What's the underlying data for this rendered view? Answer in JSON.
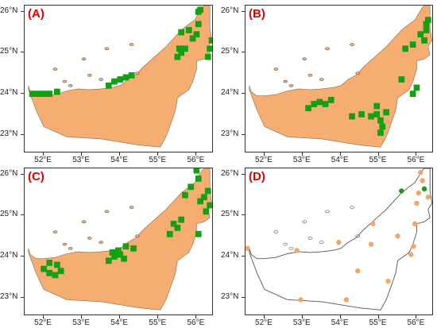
{
  "colors": {
    "land": "#f5ad72",
    "suitable": "#13a013",
    "point_orange": "#f2a766",
    "point_green": "#1a9c1a",
    "coastline": "#555555",
    "panel_label": "#e00000"
  },
  "axes": {
    "x_ticks": [
      "52°E",
      "53°E",
      "54°E",
      "55°E",
      "56°E"
    ],
    "y_ticks": [
      "26°N",
      "25°N",
      "24°N",
      "23°N"
    ],
    "lon_values": [
      52,
      53,
      54,
      55,
      56
    ],
    "lat_values": [
      26,
      25,
      24,
      23
    ],
    "lon_range": [
      51.5,
      56.45
    ],
    "lat_range": [
      22.55,
      26.15
    ]
  },
  "panels": [
    {
      "label": "(A)",
      "type": "prediction"
    },
    {
      "label": "(B)",
      "type": "prediction"
    },
    {
      "label": "(C)",
      "type": "prediction"
    },
    {
      "label": "(D)",
      "type": "occurrence"
    }
  ],
  "map_data": {
    "outline_lonlat": [
      [
        51.6,
        24.2
      ],
      [
        51.65,
        24.05
      ],
      [
        51.8,
        23.95
      ],
      [
        52.0,
        23.95
      ],
      [
        52.3,
        23.98
      ],
      [
        52.6,
        24.07
      ],
      [
        52.9,
        24.12
      ],
      [
        53.2,
        24.1
      ],
      [
        53.5,
        24.12
      ],
      [
        53.8,
        24.15
      ],
      [
        54.0,
        24.2
      ],
      [
        54.2,
        24.35
      ],
      [
        54.4,
        24.45
      ],
      [
        54.6,
        24.65
      ],
      [
        54.9,
        24.9
      ],
      [
        55.2,
        25.15
      ],
      [
        55.4,
        25.35
      ],
      [
        55.6,
        25.55
      ],
      [
        55.8,
        25.7
      ],
      [
        55.95,
        25.8
      ],
      [
        56.08,
        26.0
      ],
      [
        56.15,
        26.1
      ],
      [
        56.2,
        26.15
      ],
      [
        56.35,
        26.15
      ],
      [
        56.35,
        25.85
      ],
      [
        56.35,
        25.6
      ],
      [
        56.4,
        25.3
      ],
      [
        56.3,
        25.15
      ],
      [
        56.35,
        24.95
      ],
      [
        56.2,
        24.85
      ],
      [
        56.0,
        24.8
      ],
      [
        56.0,
        24.6
      ],
      [
        55.9,
        24.3
      ],
      [
        55.8,
        24.1
      ],
      [
        55.5,
        23.9
      ],
      [
        55.45,
        23.6
      ],
      [
        55.3,
        23.2
      ],
      [
        55.2,
        22.95
      ],
      [
        55.05,
        22.7
      ],
      [
        54.5,
        22.75
      ],
      [
        53.5,
        22.9
      ],
      [
        52.6,
        22.95
      ],
      [
        52.0,
        23.2
      ],
      [
        51.8,
        23.6
      ],
      [
        51.6,
        24.1
      ]
    ],
    "islands_lonlat": [
      [
        52.3,
        24.6
      ],
      [
        52.55,
        24.3
      ],
      [
        53.2,
        24.45
      ],
      [
        53.5,
        24.35
      ],
      [
        53.65,
        25.1
      ],
      [
        53.05,
        24.85
      ],
      [
        54.3,
        25.2
      ],
      [
        54.45,
        24.5
      ],
      [
        52.7,
        24.2
      ]
    ],
    "occurrences": [
      {
        "lon": 51.55,
        "lat": 24.2,
        "kind": "orange"
      },
      {
        "lon": 52.85,
        "lat": 24.15,
        "kind": "orange"
      },
      {
        "lon": 52.95,
        "lat": 22.95,
        "kind": "orange"
      },
      {
        "lon": 53.95,
        "lat": 24.35,
        "kind": "orange"
      },
      {
        "lon": 54.15,
        "lat": 22.95,
        "kind": "orange"
      },
      {
        "lon": 54.45,
        "lat": 23.65,
        "kind": "orange"
      },
      {
        "lon": 54.8,
        "lat": 24.3,
        "kind": "orange"
      },
      {
        "lon": 54.85,
        "lat": 24.8,
        "kind": "orange"
      },
      {
        "lon": 55.25,
        "lat": 23.4,
        "kind": "orange"
      },
      {
        "lon": 55.5,
        "lat": 24.5,
        "kind": "orange"
      },
      {
        "lon": 55.85,
        "lat": 24.05,
        "kind": "orange"
      },
      {
        "lon": 55.92,
        "lat": 24.25,
        "kind": "orange"
      },
      {
        "lon": 55.95,
        "lat": 24.8,
        "kind": "orange"
      },
      {
        "lon": 56.0,
        "lat": 25.3,
        "kind": "orange"
      },
      {
        "lon": 56.05,
        "lat": 25.55,
        "kind": "orange"
      },
      {
        "lon": 56.15,
        "lat": 25.85,
        "kind": "orange"
      },
      {
        "lon": 56.3,
        "lat": 25.45,
        "kind": "orange"
      },
      {
        "lon": 56.1,
        "lat": 26.05,
        "kind": "orange"
      },
      {
        "lon": 55.6,
        "lat": 25.6,
        "kind": "green"
      },
      {
        "lon": 56.2,
        "lat": 25.65,
        "kind": "green"
      }
    ]
  },
  "suitable_cells_A": [
    [
      51.7,
      24.0
    ],
    [
      51.85,
      24.0
    ],
    [
      52.0,
      24.0
    ],
    [
      52.15,
      24.0
    ],
    [
      52.35,
      24.05
    ],
    [
      54.0,
      24.35
    ],
    [
      54.15,
      24.4
    ],
    [
      54.3,
      24.45
    ],
    [
      53.7,
      24.2
    ],
    [
      53.85,
      24.3
    ],
    [
      55.5,
      24.9
    ],
    [
      55.6,
      25.0
    ],
    [
      55.7,
      25.1
    ],
    [
      55.55,
      25.1
    ],
    [
      55.9,
      25.35
    ],
    [
      56.0,
      25.45
    ],
    [
      56.05,
      25.7
    ],
    [
      56.35,
      25.1
    ],
    [
      56.4,
      25.3
    ],
    [
      56.05,
      26.0
    ],
    [
      56.1,
      26.05
    ],
    [
      55.8,
      25.55
    ],
    [
      55.6,
      25.5
    ],
    [
      56.3,
      24.9
    ]
  ],
  "suitable_cells_B": [
    [
      53.3,
      23.75
    ],
    [
      53.45,
      23.8
    ],
    [
      53.6,
      23.75
    ],
    [
      53.75,
      23.85
    ],
    [
      53.15,
      23.65
    ],
    [
      54.95,
      23.5
    ],
    [
      55.05,
      23.35
    ],
    [
      55.1,
      23.2
    ],
    [
      55.05,
      23.05
    ],
    [
      54.8,
      23.45
    ],
    [
      54.95,
      23.7
    ],
    [
      55.2,
      23.55
    ],
    [
      54.3,
      23.45
    ],
    [
      54.55,
      23.5
    ],
    [
      55.6,
      24.35
    ],
    [
      56.0,
      24.15
    ],
    [
      55.9,
      24.0
    ],
    [
      56.25,
      25.7
    ],
    [
      56.3,
      25.8
    ],
    [
      56.2,
      25.3
    ],
    [
      56.1,
      25.45
    ],
    [
      56.25,
      25.55
    ],
    [
      55.7,
      25.1
    ],
    [
      55.9,
      25.2
    ]
  ],
  "suitable_cells_C": [
    [
      52.0,
      23.7
    ],
    [
      52.15,
      23.6
    ],
    [
      52.3,
      23.55
    ],
    [
      52.45,
      23.65
    ],
    [
      52.15,
      23.85
    ],
    [
      52.35,
      23.8
    ],
    [
      53.7,
      23.9
    ],
    [
      53.85,
      24.0
    ],
    [
      53.95,
      24.15
    ],
    [
      54.1,
      23.95
    ],
    [
      53.8,
      24.1
    ],
    [
      54.15,
      24.25
    ],
    [
      54.0,
      24.05
    ],
    [
      54.35,
      24.2
    ],
    [
      55.3,
      24.55
    ],
    [
      55.5,
      24.7
    ],
    [
      55.6,
      24.9
    ],
    [
      55.4,
      24.8
    ],
    [
      56.05,
      24.55
    ],
    [
      56.1,
      25.35
    ],
    [
      56.2,
      25.45
    ],
    [
      56.35,
      25.25
    ],
    [
      56.25,
      25.1
    ],
    [
      56.3,
      25.6
    ],
    [
      56.05,
      25.9
    ],
    [
      55.85,
      25.7
    ],
    [
      56.0,
      26.1
    ],
    [
      55.7,
      25.5
    ]
  ]
}
